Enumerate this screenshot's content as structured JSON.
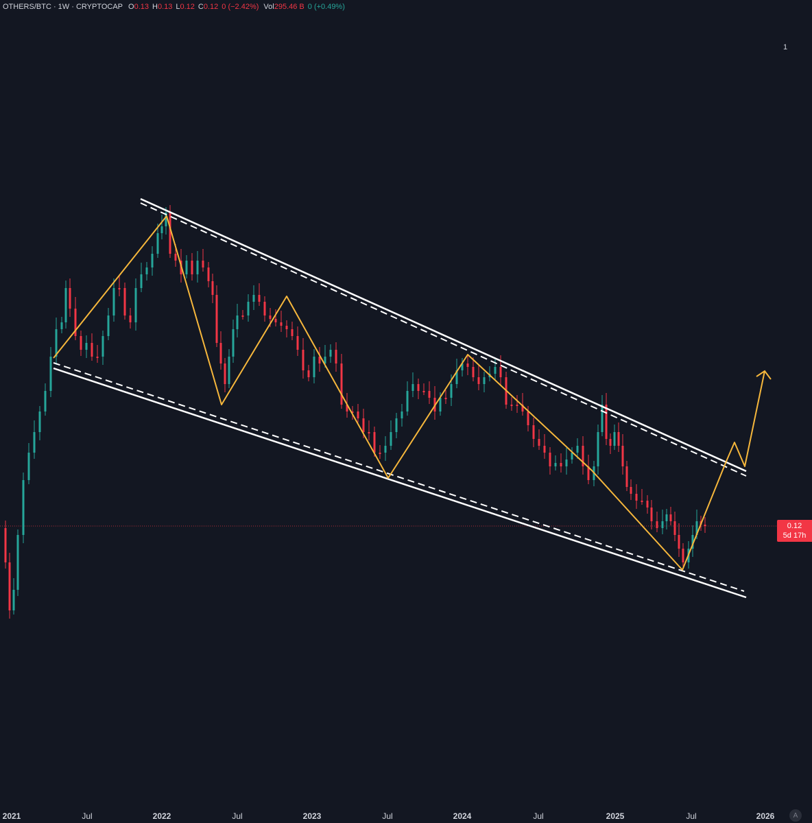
{
  "header": {
    "symbol": "OTHERS/BTC · 1W · CRYPTOCAP",
    "open_label": "O",
    "open_value": "0.13",
    "high_label": "H",
    "high_value": "0.13",
    "low_label": "L",
    "low_value": "0.12",
    "close_label": "C",
    "close_value": "0.12",
    "change": "0 (−2.42%)",
    "volume_label": "Vol",
    "volume_value": "295.46 B",
    "volume_change": "0 (+0.49%)"
  },
  "pane_number": "1",
  "price_label": {
    "value": "0.12",
    "countdown": "5d 17h"
  },
  "auto_scale_button": "A",
  "x_axis": {
    "labels": [
      {
        "text": "2021",
        "year": true
      },
      {
        "text": "Jul",
        "year": false
      },
      {
        "text": "2022",
        "year": true
      },
      {
        "text": "Jul",
        "year": false
      },
      {
        "text": "2023",
        "year": true
      },
      {
        "text": "Jul",
        "year": false
      },
      {
        "text": "2024",
        "year": true
      },
      {
        "text": "Jul",
        "year": false
      },
      {
        "text": "2025",
        "year": true
      },
      {
        "text": "Jul",
        "year": false
      },
      {
        "text": "2026",
        "year": true
      }
    ]
  },
  "colors": {
    "background": "#131722",
    "up": "#26a69a",
    "down": "#f23645",
    "channel": "#ffffff",
    "wave": "#f6b73c",
    "price_line": "#f23645"
  },
  "chart_data": {
    "type": "candlestick",
    "interval": "1W",
    "x_axis_labels": [
      "2021",
      "Jul",
      "2022",
      "Jul",
      "2023",
      "Jul",
      "2024",
      "Jul",
      "2025",
      "Jul",
      "2026"
    ],
    "current_price": 0.12,
    "last_bar": {
      "open": 0.13,
      "high": 0.13,
      "low": 0.12,
      "close": 0.12,
      "change_pct": -2.42
    },
    "volume": "295.46 B",
    "annotations": [
      "descending channel (two solid white lines with dashed inner lines)",
      "yellow zigzag wave path ending in an upward arrow"
    ]
  }
}
